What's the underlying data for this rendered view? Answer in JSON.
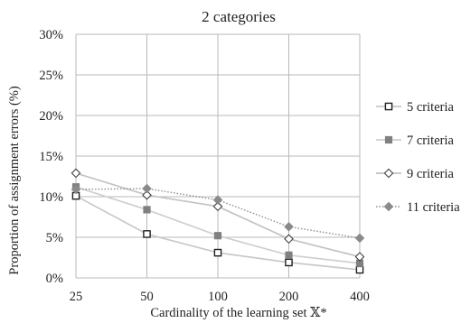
{
  "chart_data": {
    "type": "line",
    "title": "2 categories",
    "xlabel": "Cardinality of the learning set 𝕏*",
    "ylabel": "Proportion of assignment errors (%)",
    "categories": [
      "25",
      "50",
      "100",
      "200",
      "400"
    ],
    "ylim": [
      0,
      30
    ],
    "yticks": [
      "0%",
      "5%",
      "10%",
      "15%",
      "20%",
      "25%",
      "30%"
    ],
    "grid": "vertical and horizontal",
    "legend_position": "right",
    "series": [
      {
        "name": "5 criteria",
        "values": [
          10.1,
          5.4,
          3.1,
          1.9,
          1.0
        ],
        "marker": "open-square",
        "color": "#c9c9c9",
        "dash": "solid"
      },
      {
        "name": "7 criteria",
        "values": [
          11.2,
          8.4,
          5.2,
          2.8,
          1.8
        ],
        "marker": "filled-square",
        "color": "#cfcfcf",
        "dash": "solid"
      },
      {
        "name": "9 criteria",
        "values": [
          12.9,
          10.2,
          8.8,
          4.8,
          2.6
        ],
        "marker": "open-diamond",
        "color": "#c3c3c3",
        "dash": "solid"
      },
      {
        "name": "11 criteria",
        "values": [
          10.9,
          11.0,
          9.6,
          6.3,
          4.9
        ],
        "marker": "filled-diamond",
        "color": "#8e8e8e",
        "dash": "dotted"
      }
    ]
  }
}
